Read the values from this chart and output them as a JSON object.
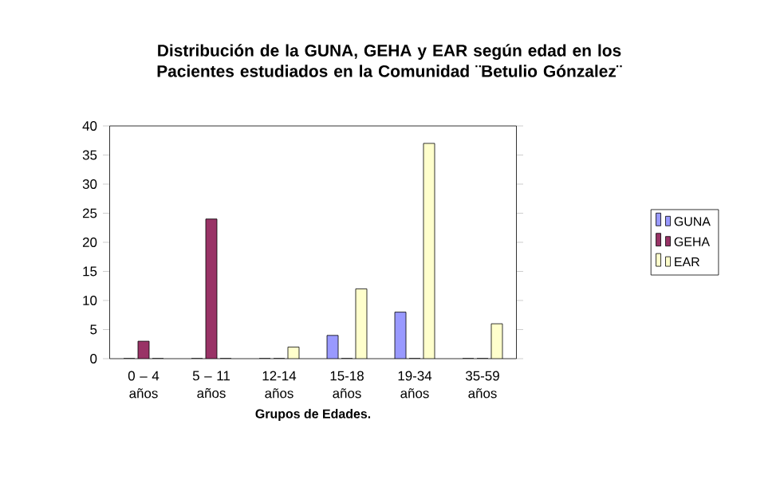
{
  "chart_data": {
    "type": "bar",
    "title": "Distribución de la GUNA, GEHA y EAR según edad en los Pacientes  estudiados en la Comunidad ¨Betulio Gónzalez¨",
    "xlabel": "Grupos de Edades.",
    "categories": [
      "0 – 4 años",
      "5 – 11 años",
      "12-14 años",
      "15-18 años",
      "19-34 años",
      "35-59 años"
    ],
    "series": [
      {
        "name": "GUNA",
        "color": "#9999ff",
        "values": [
          0,
          0,
          0,
          4,
          8,
          0
        ]
      },
      {
        "name": "GEHA",
        "color": "#993366",
        "values": [
          3,
          24,
          0,
          0,
          0,
          0
        ]
      },
      {
        "name": "EAR",
        "color": "#ffffcc",
        "values": [
          0,
          0,
          2,
          12,
          37,
          6
        ]
      }
    ],
    "ylim": [
      0,
      40
    ],
    "yticks": [
      0,
      5,
      10,
      15,
      20,
      25,
      30,
      35,
      40
    ],
    "grid": false,
    "legend": "right"
  }
}
